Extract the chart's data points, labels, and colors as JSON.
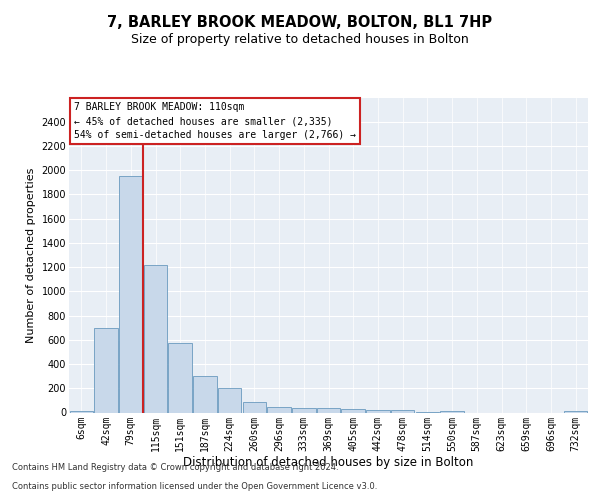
{
  "title": "7, BARLEY BROOK MEADOW, BOLTON, BL1 7HP",
  "subtitle": "Size of property relative to detached houses in Bolton",
  "xlabel": "Distribution of detached houses by size in Bolton",
  "ylabel": "Number of detached properties",
  "bar_color": "#c8d8ea",
  "bar_edge_color": "#6a9abf",
  "categories": [
    "6sqm",
    "42sqm",
    "79sqm",
    "115sqm",
    "151sqm",
    "187sqm",
    "224sqm",
    "260sqm",
    "296sqm",
    "333sqm",
    "369sqm",
    "405sqm",
    "442sqm",
    "478sqm",
    "514sqm",
    "550sqm",
    "587sqm",
    "623sqm",
    "659sqm",
    "696sqm",
    "732sqm"
  ],
  "values": [
    15,
    700,
    1950,
    1220,
    575,
    305,
    200,
    85,
    45,
    35,
    35,
    25,
    20,
    20,
    5,
    15,
    0,
    0,
    0,
    0,
    15
  ],
  "ylim": [
    0,
    2600
  ],
  "yticks": [
    0,
    200,
    400,
    600,
    800,
    1000,
    1200,
    1400,
    1600,
    1800,
    2000,
    2200,
    2400
  ],
  "vline_index": 2,
  "annotation_title": "7 BARLEY BROOK MEADOW: 110sqm",
  "annotation_line1": "← 45% of detached houses are smaller (2,335)",
  "annotation_line2": "54% of semi-detached houses are larger (2,766) →",
  "vline_color": "#cc2222",
  "annotation_box_edgecolor": "#cc2222",
  "footer1": "Contains HM Land Registry data © Crown copyright and database right 2024.",
  "footer2": "Contains public sector information licensed under the Open Government Licence v3.0.",
  "plot_bg_color": "#e8eef5",
  "fig_bg_color": "#ffffff",
  "grid_color": "#ffffff",
  "title_fontsize": 10.5,
  "subtitle_fontsize": 9,
  "xlabel_fontsize": 8.5,
  "ylabel_fontsize": 8,
  "tick_fontsize": 7,
  "annotation_fontsize": 7,
  "footer_fontsize": 6
}
